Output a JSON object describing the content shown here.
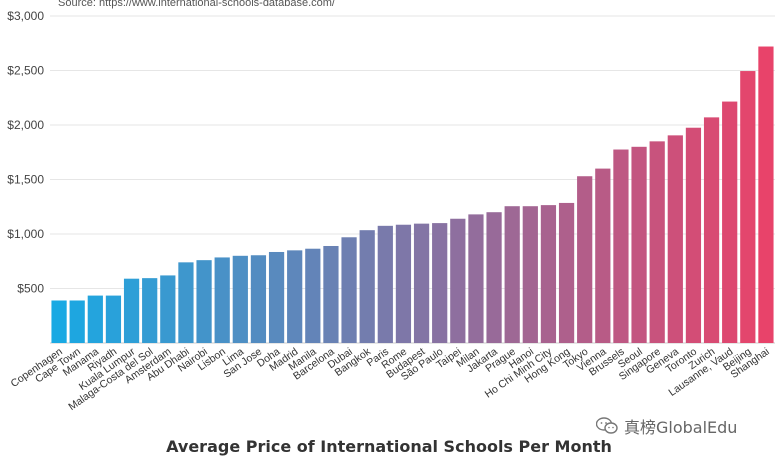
{
  "source_text": "Source: https://www.international-schools-database.com/",
  "watermark_text": "真榜GlobalEdu",
  "watermark_icon": "chat-bubbles-icon",
  "chart_data": {
    "type": "bar",
    "xlabel": "Average Price of International Schools Per Month",
    "ylabel": "",
    "ylim": [
      0,
      3000
    ],
    "yticks": [
      500,
      1000,
      1500,
      2000,
      2500,
      3000
    ],
    "ytick_labels": [
      "$500",
      "$1,000",
      "$1,500",
      "$2,000",
      "$2,500",
      "$3,000"
    ],
    "grid": true,
    "color_start": "#19a9e3",
    "color_end": "#e8436a",
    "categories": [
      "Copenhagen",
      "Cape Town",
      "Manama",
      "Riyadh",
      "Kuala Lumpur",
      "Malaga-Costa del Sol",
      "Amsterdam",
      "Abu Dhabi",
      "Nairobi",
      "Lisbon",
      "Lima",
      "San Jose",
      "Doha",
      "Madrid",
      "Manila",
      "Barcelona",
      "Dubai",
      "Bangkok",
      "Paris",
      "Rome",
      "Budapest",
      "São Paulo",
      "Taipei",
      "Milan",
      "Jakarta",
      "Prague",
      "Hanoi",
      "Ho Chi Minh City",
      "Hong Kong",
      "Tokyo",
      "Vienna",
      "Brussels",
      "Seoul",
      "Singapore",
      "Geneva",
      "Toronto",
      "Zurich",
      "Lausanne, Vaud",
      "Beijing",
      "Shanghai"
    ],
    "values": [
      390,
      390,
      435,
      435,
      590,
      595,
      620,
      740,
      760,
      785,
      800,
      805,
      835,
      850,
      865,
      890,
      970,
      1035,
      1075,
      1085,
      1095,
      1100,
      1140,
      1180,
      1200,
      1255,
      1255,
      1265,
      1285,
      1530,
      1600,
      1775,
      1800,
      1850,
      1905,
      1975,
      2070,
      2215,
      2495,
      2720
    ]
  }
}
